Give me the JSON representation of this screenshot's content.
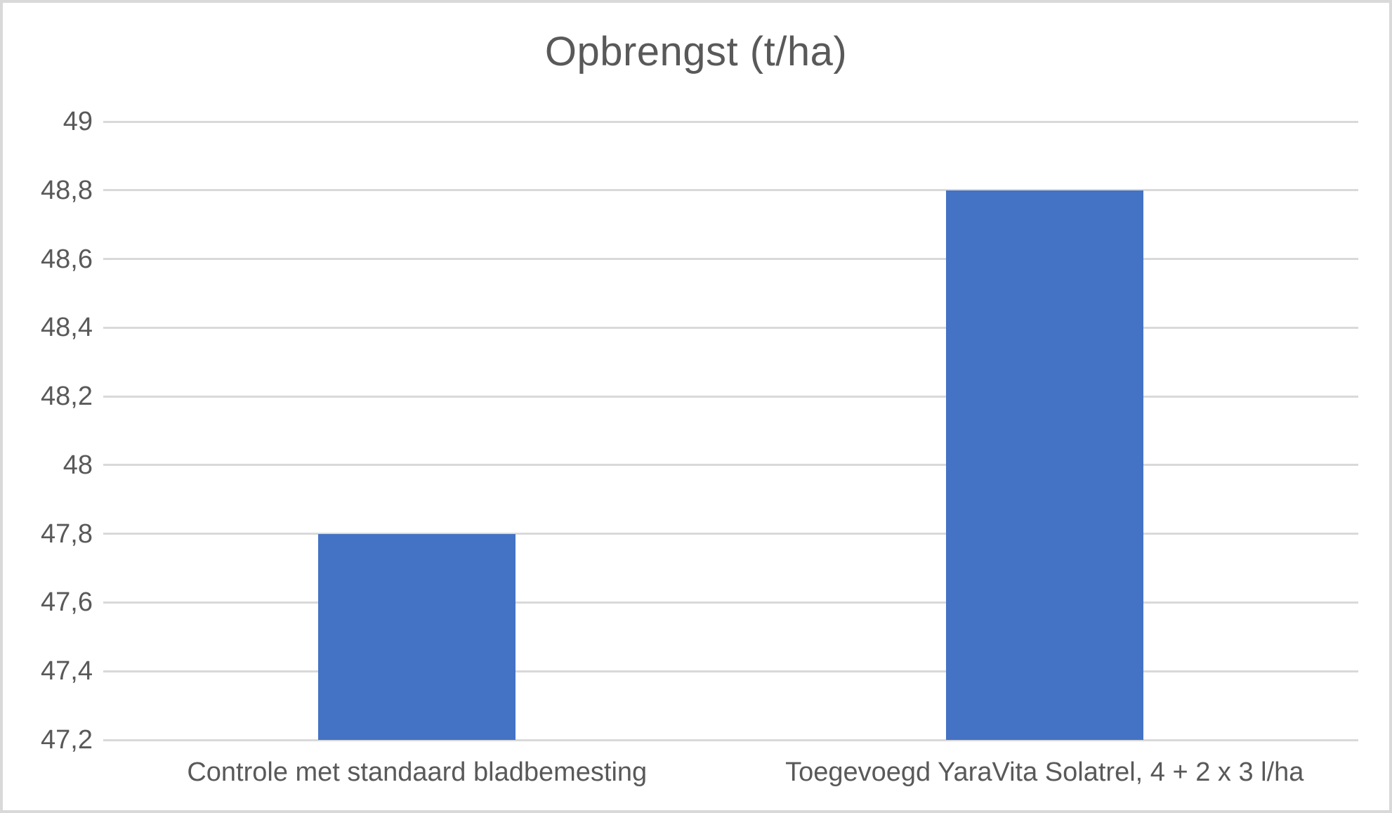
{
  "chart_data": {
    "type": "bar",
    "title": "Opbrengst (t/ha)",
    "categories": [
      "Controle met standaard bladbemesting",
      "Toegevoegd YaraVita Solatrel, 4 + 2 x 3 l/ha"
    ],
    "values": [
      47.8,
      48.8
    ],
    "xlabel": "",
    "ylabel": "",
    "ylim": [
      47.2,
      49
    ],
    "ytick_step": 0.2,
    "ytick_labels": [
      "47,2",
      "47,6",
      "48",
      "48,4",
      "48,8"
    ],
    "ytick_labels_full": [
      "47,2",
      "47,4",
      "47,6",
      "47,8",
      "48",
      "48,2",
      "48,4",
      "48,6",
      "48,8",
      "49"
    ],
    "grid": true,
    "legend_position": "none",
    "decimal_separator": ",",
    "colors": {
      "bar": "#4472C4",
      "gridline": "#D9D9D9",
      "text": "#595959",
      "background": "#FFFFFF",
      "canvas_border": "#D9D9D9"
    }
  }
}
